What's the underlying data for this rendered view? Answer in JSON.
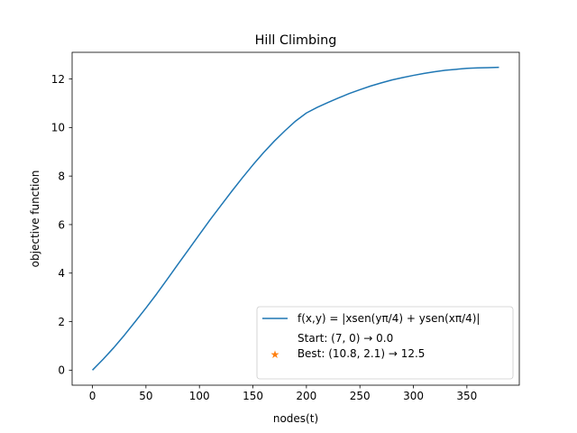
{
  "chart_data": {
    "type": "line",
    "title": "Hill Climbing",
    "xlabel": "nodes(t)",
    "ylabel": "objective function",
    "xlim": [
      -19,
      399
    ],
    "ylim": [
      -0.62,
      13.1
    ],
    "xticks": [
      0,
      50,
      100,
      150,
      200,
      250,
      300,
      350
    ],
    "yticks": [
      0,
      2,
      4,
      6,
      8,
      10,
      12
    ],
    "grid": false,
    "legend_position": "lower-right",
    "series": [
      {
        "name": "f(x,y) = |xsen(yπ/4) + ysen(xπ/4)|",
        "color": "#1f77b4",
        "x": [
          0,
          10,
          20,
          30,
          40,
          50,
          60,
          70,
          80,
          90,
          100,
          110,
          120,
          130,
          140,
          150,
          160,
          170,
          180,
          190,
          200,
          210,
          220,
          230,
          240,
          250,
          260,
          270,
          280,
          290,
          300,
          310,
          320,
          330,
          340,
          350,
          360,
          370,
          380
        ],
        "y": [
          0.0,
          0.45,
          0.93,
          1.45,
          2.0,
          2.56,
          3.14,
          3.75,
          4.37,
          4.98,
          5.59,
          6.2,
          6.78,
          7.36,
          7.92,
          8.46,
          8.97,
          9.44,
          9.87,
          10.27,
          10.6,
          10.83,
          11.03,
          11.22,
          11.4,
          11.56,
          11.71,
          11.84,
          11.96,
          12.06,
          12.15,
          12.23,
          12.3,
          12.36,
          12.4,
          12.44,
          12.46,
          12.47,
          12.48
        ]
      }
    ],
    "legend_entries": [
      {
        "label": "f(x,y) = |xsen(yπ/4) + ysen(xπ/4)|",
        "marker": "line",
        "color": "#1f77b4"
      },
      {
        "label": "Start: (7, 0) → 0.0",
        "marker": "none",
        "color": ""
      },
      {
        "label": " Best: (10.8, 2.1) → 12.5",
        "marker": "star",
        "color": "#ff7f0e"
      }
    ]
  }
}
